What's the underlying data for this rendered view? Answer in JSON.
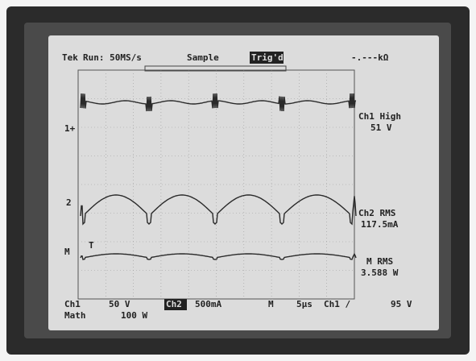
{
  "header": {
    "brand": "Tek",
    "mode": "Run: 50MS/s",
    "acquisition": "Sample",
    "trigger": "Trig'd",
    "resistance": "-.---kΩ"
  },
  "readouts": [
    {
      "label": "Ch1 High",
      "value": "51 V"
    },
    {
      "label": "Ch2 RMS",
      "value": "117.5mA"
    },
    {
      "label": "M RMS",
      "value": "3.588 W"
    }
  ],
  "markers": {
    "ch1": "1+",
    "ch2": "2",
    "math": "M",
    "trigger": "T"
  },
  "footer": {
    "ch1": "Ch1",
    "ch1_scale": "50 V",
    "ch2": "Ch2",
    "ch2_scale": "500mA",
    "time_label": "M",
    "time_scale": "5μs",
    "trigger_source": "Ch1 /",
    "trigger_level": "95 V",
    "math": "Math",
    "math_scale": "100 W"
  }
}
